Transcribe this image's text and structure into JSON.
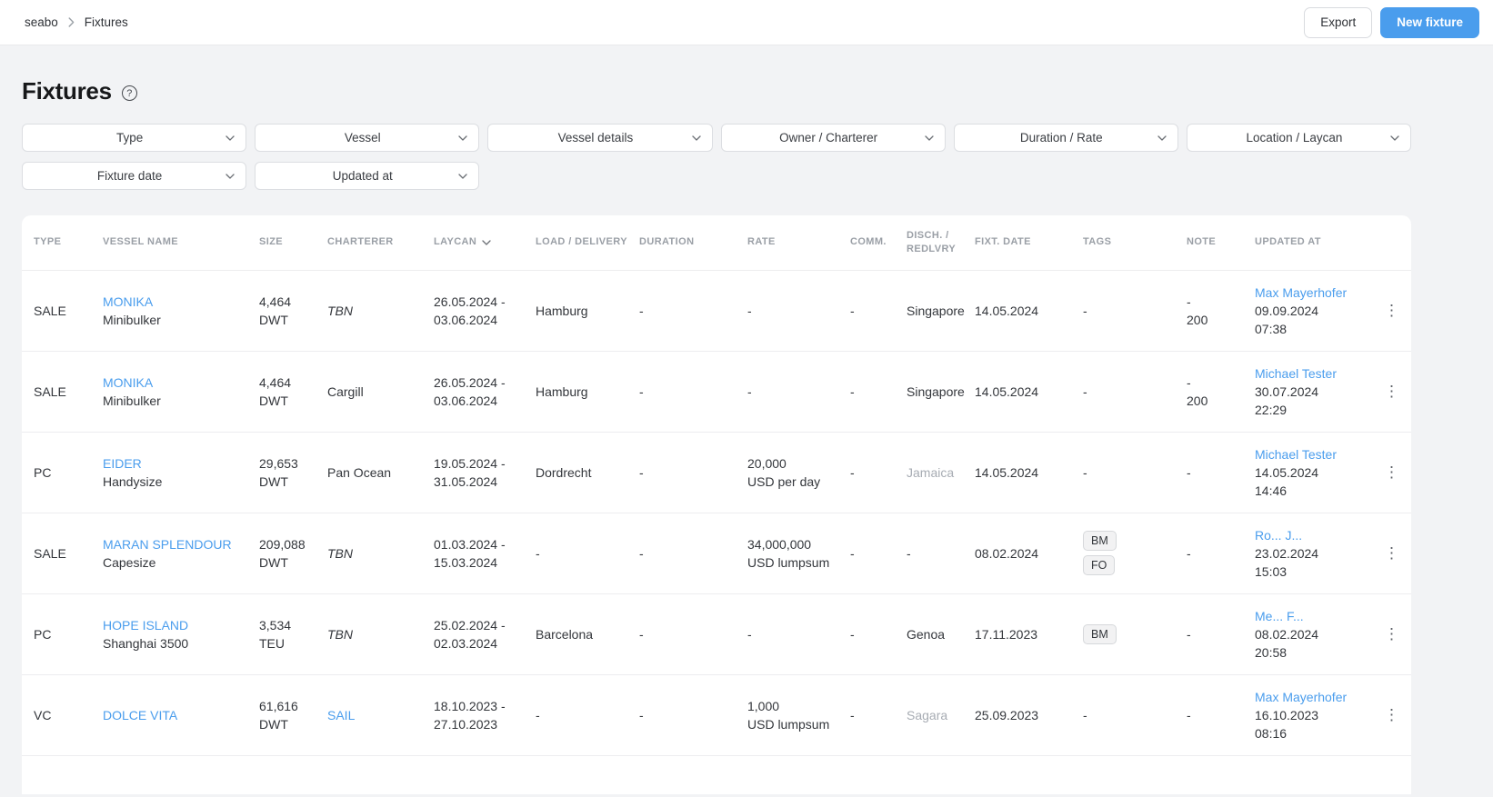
{
  "colors": {
    "accent_blue": "#4a9ded",
    "link_blue": "#4a9ded",
    "page_background": "#f2f3f5",
    "muted_text": "#a7acb3"
  },
  "topbar": {
    "breadcrumb": {
      "root": "seabo",
      "current": "Fixtures"
    },
    "export_button": "Export",
    "new_fixture_button": "New fixture"
  },
  "page": {
    "title": "Fixtures"
  },
  "filters": {
    "row1": [
      "Type",
      "Vessel",
      "Vessel details",
      "Owner / Charterer",
      "Duration / Rate",
      "Location / Laycan"
    ],
    "row2": [
      "Fixture date",
      "Updated at"
    ]
  },
  "table": {
    "columns": [
      {
        "key": "type",
        "label": "Type"
      },
      {
        "key": "vessel-name",
        "label": "Vessel name"
      },
      {
        "key": "size",
        "label": "Size"
      },
      {
        "key": "charterer",
        "label": "Charterer"
      },
      {
        "key": "laycan",
        "label": "Laycan",
        "sortable": true
      },
      {
        "key": "load-delivery",
        "label": "Load / Delivery"
      },
      {
        "key": "duration",
        "label": "Duration"
      },
      {
        "key": "rate",
        "label": "Rate"
      },
      {
        "key": "comm",
        "label": "Comm."
      },
      {
        "key": "disch-redlvry",
        "label": "Disch. / Redlvry",
        "wrap": true
      },
      {
        "key": "fixt-date",
        "label": "Fixt. date"
      },
      {
        "key": "tags",
        "label": "Tags"
      },
      {
        "key": "note",
        "label": "Note"
      },
      {
        "key": "updated-at",
        "label": "Updated at"
      },
      {
        "key": "menu",
        "label": ""
      }
    ],
    "rows": [
      {
        "type": "SALE",
        "vessel": {
          "name": "MONIKA",
          "sub": "Minibulker"
        },
        "size": "4,464 DWT",
        "charterer": {
          "text": "TBN",
          "style": "tbn"
        },
        "laycan": "26.05.2024 -\n03.06.2024",
        "load_delivery": "Hamburg",
        "duration": "-",
        "rate": "-",
        "comm": "-",
        "disch": {
          "text": "Singapore",
          "muted": false
        },
        "fixt_date": "14.05.2024",
        "tags": [],
        "note": "-\n200",
        "updated": {
          "by": "Max Mayerhofer",
          "date": "09.09.2024",
          "time": "07:38"
        }
      },
      {
        "type": "SALE",
        "vessel": {
          "name": "MONIKA",
          "sub": "Minibulker"
        },
        "size": "4,464 DWT",
        "charterer": {
          "text": "Cargill",
          "style": "normal"
        },
        "laycan": "26.05.2024 -\n03.06.2024",
        "load_delivery": "Hamburg",
        "duration": "-",
        "rate": "-",
        "comm": "-",
        "disch": {
          "text": "Singapore",
          "muted": false
        },
        "fixt_date": "14.05.2024",
        "tags": [],
        "note": "-\n200",
        "updated": {
          "by": "Michael Tester",
          "date": "30.07.2024",
          "time": "22:29"
        }
      },
      {
        "type": "PC",
        "vessel": {
          "name": "EIDER",
          "sub": "Handysize"
        },
        "size": "29,653 DWT",
        "charterer": {
          "text": "Pan Ocean",
          "style": "normal"
        },
        "laycan": "19.05.2024 -\n31.05.2024",
        "load_delivery": "Dordrecht",
        "duration": "-",
        "rate": "20,000\nUSD per day",
        "comm": "-",
        "disch": {
          "text": "Jamaica",
          "muted": true
        },
        "fixt_date": "14.05.2024",
        "tags": [],
        "note": "-",
        "updated": {
          "by": "Michael Tester",
          "date": "14.05.2024",
          "time": "14:46"
        }
      },
      {
        "type": "SALE",
        "vessel": {
          "name": "MARAN SPLENDOUR",
          "sub": "Capesize"
        },
        "size": "209,088 DWT",
        "charterer": {
          "text": "TBN",
          "style": "tbn"
        },
        "laycan": "01.03.2024 -\n15.03.2024",
        "load_delivery": "-",
        "duration": "-",
        "rate": "34,000,000\nUSD lumpsum",
        "comm": "-",
        "disch": {
          "text": "-",
          "muted": false
        },
        "fixt_date": "08.02.2024",
        "tags": [
          "BM",
          "FO"
        ],
        "note": "-",
        "updated": {
          "by": "Ro... J...",
          "date": "23.02.2024",
          "time": "15:03"
        }
      },
      {
        "type": "PC",
        "vessel": {
          "name": "HOPE ISLAND",
          "sub": "Shanghai 3500"
        },
        "size": "3,534 TEU",
        "charterer": {
          "text": "TBN",
          "style": "tbn"
        },
        "laycan": "25.02.2024 -\n02.03.2024",
        "load_delivery": "Barcelona",
        "duration": "-",
        "rate": "-",
        "comm": "-",
        "disch": {
          "text": "Genoa",
          "muted": false
        },
        "fixt_date": "17.11.2023",
        "tags": [
          "BM"
        ],
        "note": "-",
        "updated": {
          "by": "Me... F...",
          "date": "08.02.2024",
          "time": "20:58"
        }
      },
      {
        "type": "VC",
        "vessel": {
          "name": "DOLCE VITA",
          "sub": ""
        },
        "size": "61,616 DWT",
        "charterer": {
          "text": "SAIL",
          "style": "link"
        },
        "laycan": "18.10.2023 -\n27.10.2023",
        "load_delivery": "-",
        "duration": "-",
        "rate": "1,000\nUSD lumpsum",
        "comm": "-",
        "disch": {
          "text": "Sagara",
          "muted": true
        },
        "fixt_date": "25.09.2023",
        "tags": [],
        "note": "-",
        "updated": {
          "by": "Max Mayerhofer",
          "date": "16.10.2023",
          "time": "08:16"
        }
      }
    ]
  }
}
